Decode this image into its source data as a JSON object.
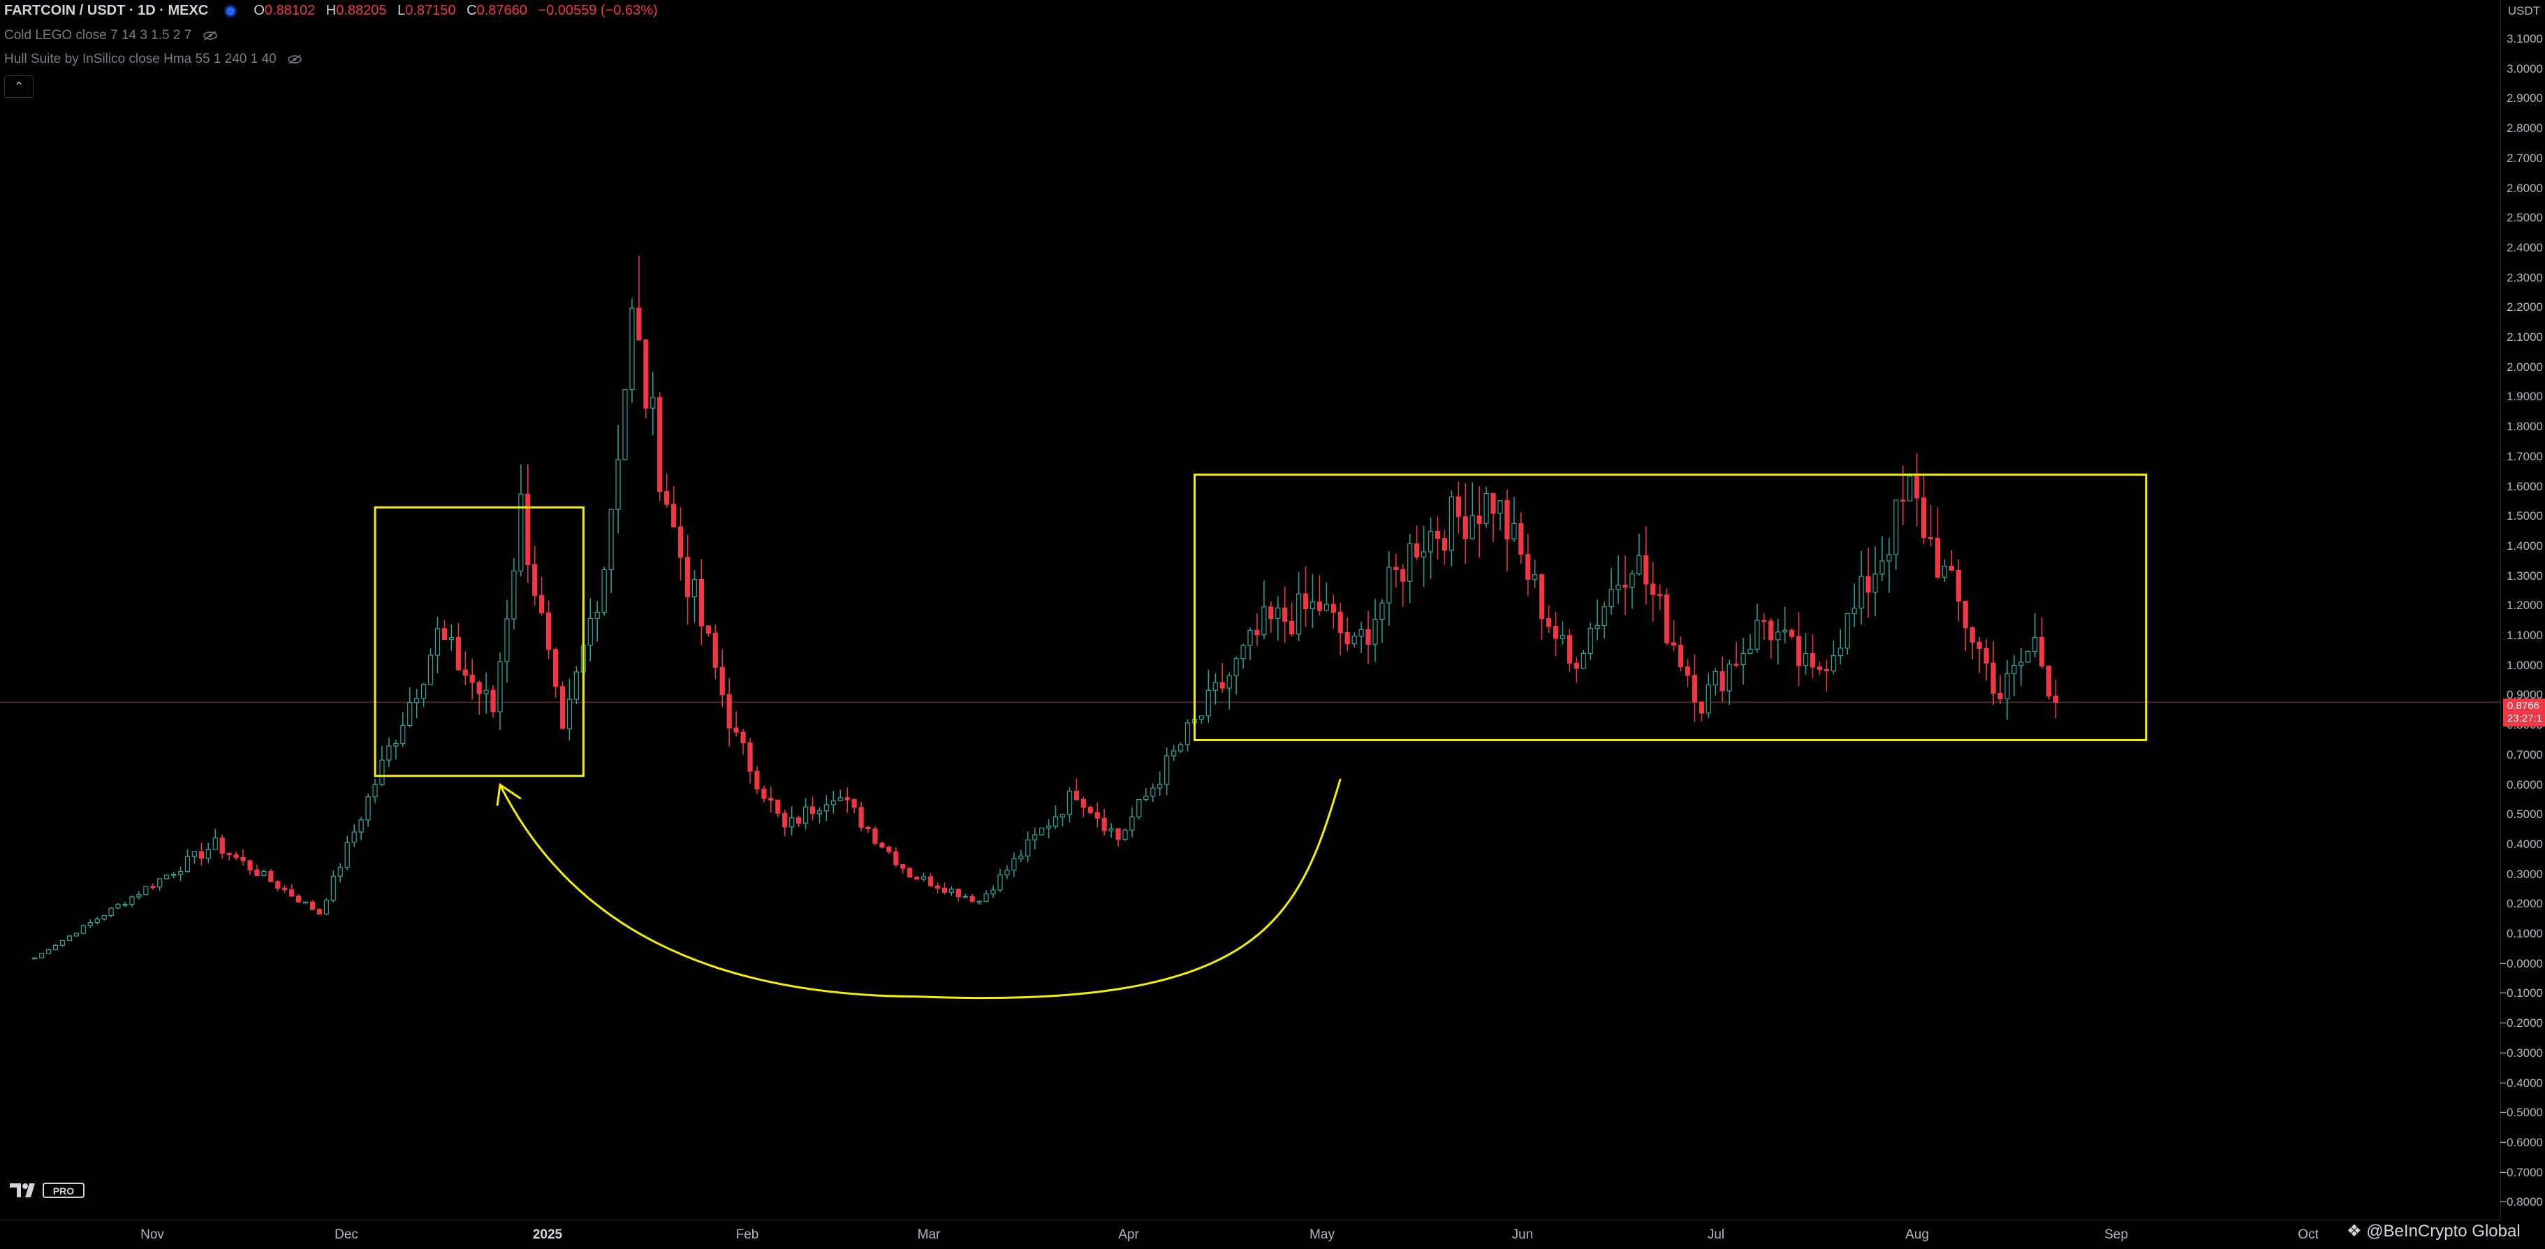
{
  "legend": {
    "symbol": "FARTCOIN / USDT · 1D · MEXC",
    "open_label": "O",
    "open": "0.88102",
    "high_label": "H",
    "high": "0.88205",
    "low_label": "L",
    "low": "0.87150",
    "close_label": "C",
    "close": "0.87660",
    "change": "−0.00559 (−0.63%)",
    "indicator1": "Cold LEGO close 7 14 3 1.5 2 7",
    "indicator2": "Hull Suite by InSilico close Hma 55 1 240 1 40",
    "collapse_glyph": "⌃"
  },
  "colors": {
    "up": "#26a69a",
    "down": "#f23645",
    "annotation": "#f5f000",
    "background": "#000000"
  },
  "price_scale": {
    "title": "USDT",
    "labels": [
      "3.1000",
      "3.0000",
      "2.9000",
      "2.8000",
      "2.7000",
      "2.6000",
      "2.5000",
      "2.4000",
      "2.3000",
      "2.2000",
      "2.1000",
      "2.0000",
      "1.9000",
      "1.8000",
      "1.7000",
      "1.6000",
      "1.5000",
      "1.4000",
      "1.3000",
      "1.2000",
      "1.1000",
      "1.0000",
      "0.9000",
      "0.8000",
      "0.7000",
      "0.6000",
      "0.5000",
      "0.4000",
      "0.3000",
      "0.2000",
      "0.1000",
      "−0.0000",
      "−0.1000",
      "−0.2000",
      "−0.3000",
      "−0.4000",
      "−0.5000",
      "−0.6000",
      "−0.7000",
      "−0.8000"
    ],
    "last_price": "0.8766",
    "countdown": "23:27:1"
  },
  "time_scale": {
    "labels": [
      "Nov",
      "Dec",
      "2025",
      "Feb",
      "Mar",
      "Apr",
      "May",
      "Jun",
      "Jul",
      "Aug",
      "Sep",
      "Oct"
    ]
  },
  "watermark": "@BeInCrypto Global",
  "tv_logo": "PRO",
  "chart_data": {
    "type": "candlestick",
    "title": "FARTCOIN / USDT · 1D · MEXC",
    "ylim": [
      -0.85,
      3.2
    ],
    "x_domain": [
      "2024-10-20",
      "2025-10-15"
    ],
    "last_close": 0.8766,
    "key_levels": [
      {
        "date": "2024-10-25",
        "price": 0.02
      },
      {
        "date": "2024-11-20",
        "price": 0.4
      },
      {
        "date": "2024-12-05",
        "price": 0.17
      },
      {
        "date": "2024-12-22",
        "price": 1.1
      },
      {
        "date": "2024-12-30",
        "price": 0.85
      },
      {
        "date": "2025-01-03",
        "price": 1.53
      },
      {
        "date": "2025-01-09",
        "price": 0.75
      },
      {
        "date": "2025-01-15",
        "price": 1.35
      },
      {
        "date": "2025-01-19",
        "price": 2.15
      },
      {
        "date": "2025-01-25",
        "price": 1.45
      },
      {
        "date": "2025-02-03",
        "price": 0.75
      },
      {
        "date": "2025-02-10",
        "price": 0.45
      },
      {
        "date": "2025-02-17",
        "price": 0.58
      },
      {
        "date": "2025-02-28",
        "price": 0.3
      },
      {
        "date": "2025-03-10",
        "price": 0.21
      },
      {
        "date": "2025-03-24",
        "price": 0.58
      },
      {
        "date": "2025-03-30",
        "price": 0.42
      },
      {
        "date": "2025-04-09",
        "price": 0.77
      },
      {
        "date": "2025-04-20",
        "price": 1.13
      },
      {
        "date": "2025-04-28",
        "price": 1.2
      },
      {
        "date": "2025-05-03",
        "price": 1.05
      },
      {
        "date": "2025-05-12",
        "price": 1.42
      },
      {
        "date": "2025-05-23",
        "price": 1.56
      },
      {
        "date": "2025-06-03",
        "price": 1.0
      },
      {
        "date": "2025-06-12",
        "price": 1.38
      },
      {
        "date": "2025-06-22",
        "price": 0.88
      },
      {
        "date": "2025-07-01",
        "price": 1.15
      },
      {
        "date": "2025-07-08",
        "price": 0.96
      },
      {
        "date": "2025-07-14",
        "price": 1.18
      },
      {
        "date": "2025-07-22",
        "price": 1.58
      },
      {
        "date": "2025-07-27",
        "price": 1.3
      },
      {
        "date": "2025-08-04",
        "price": 0.9
      },
      {
        "date": "2025-08-09",
        "price": 1.08
      },
      {
        "date": "2025-08-12",
        "price": 0.8766
      }
    ],
    "annotations": [
      {
        "type": "rectangle",
        "from": {
          "date": "2024-12-13",
          "price": 1.53
        },
        "to": {
          "date": "2025-01-12",
          "price": 0.63
        }
      },
      {
        "type": "rectangle",
        "from": {
          "date": "2025-04-10",
          "price": 1.64
        },
        "to": {
          "date": "2025-08-25",
          "price": 0.75
        }
      },
      {
        "type": "curved-arrow",
        "from": {
          "date": "2025-05-01",
          "price": 0.62
        },
        "via": {
          "date": "2025-03-01",
          "price": -0.11
        },
        "to": {
          "date": "2024-12-31",
          "price": 0.6
        }
      }
    ]
  }
}
